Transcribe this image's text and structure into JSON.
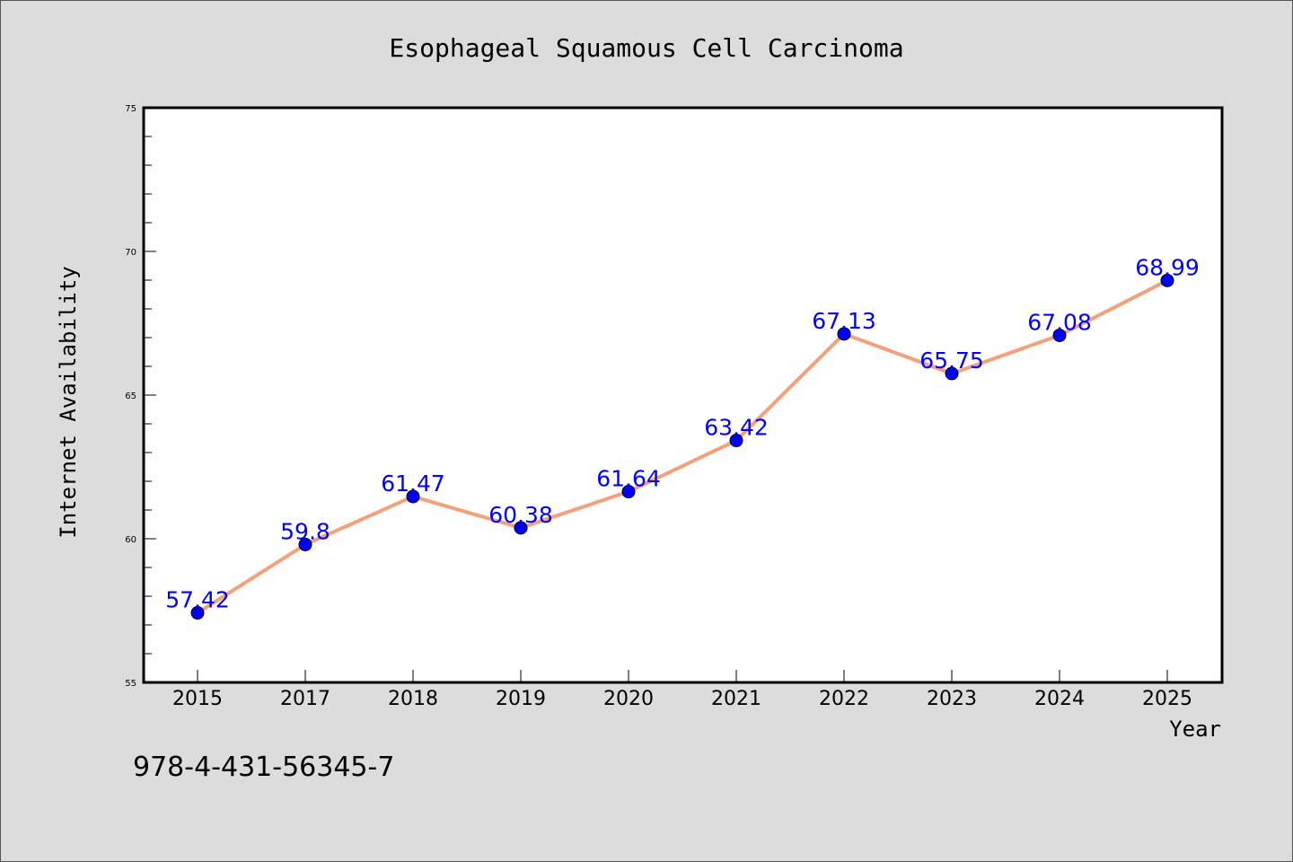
{
  "chart_data": {
    "type": "line",
    "title": "Esophageal Squamous Cell Carcinoma",
    "xlabel": "Year",
    "ylabel": "Internet Availability",
    "categories": [
      "2015",
      "2017",
      "2018",
      "2019",
      "2020",
      "2021",
      "2022",
      "2023",
      "2024",
      "2025"
    ],
    "series": [
      {
        "values": [
          57.42,
          59.8,
          61.47,
          60.38,
          61.64,
          63.42,
          67.13,
          65.75,
          67.08,
          68.99
        ]
      }
    ],
    "data_labels": [
      "57.42",
      "59.8",
      "61.47",
      "60.38",
      "61.64",
      "63.42",
      "67.13",
      "65.75",
      "67.08",
      "68.99"
    ],
    "ylim": [
      55,
      75
    ],
    "yticks": [
      55,
      60,
      65,
      70,
      75
    ],
    "grid": false,
    "colors": {
      "line": "#f4a07a",
      "marker": "#0000ff",
      "label": "#0000ff"
    }
  },
  "footer": {
    "code": "978-4-431-56345-7"
  }
}
